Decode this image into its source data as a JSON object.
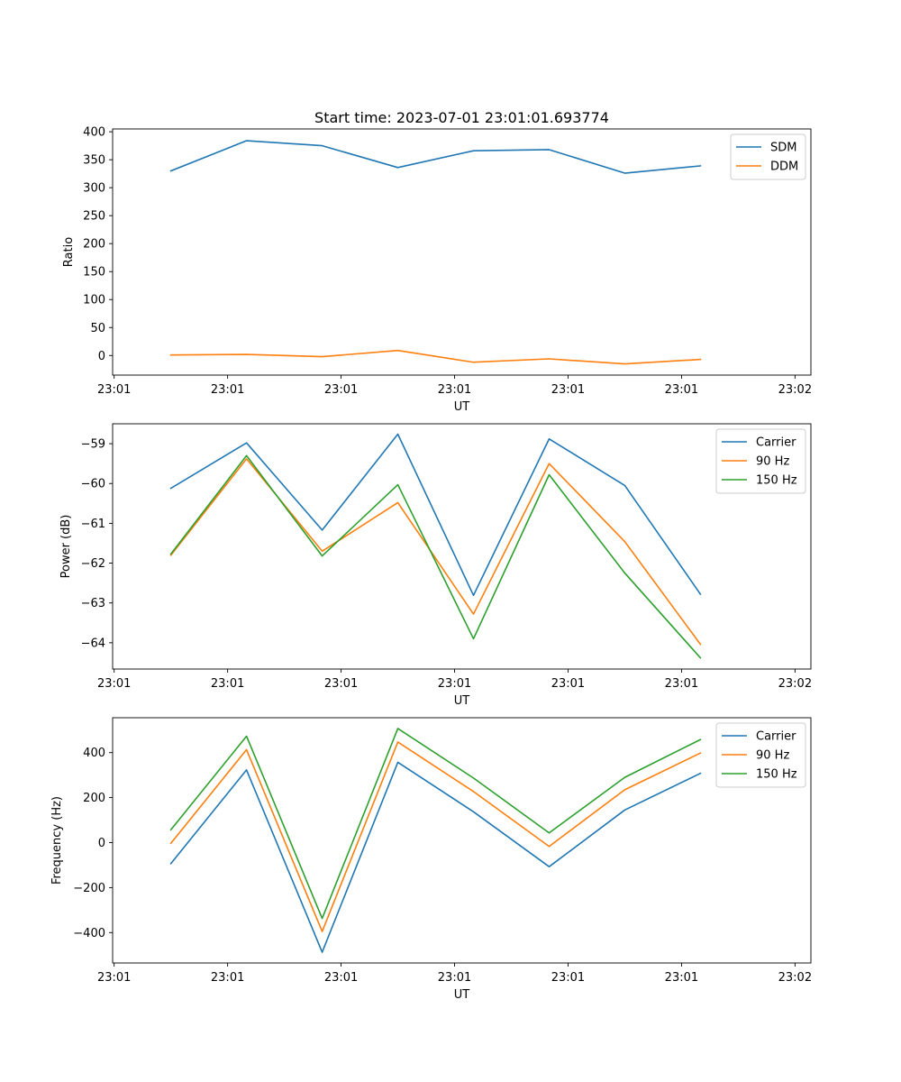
{
  "figure": {
    "title": "Start time: 2023-07-01 23:01:01.693774"
  },
  "chart_data": [
    {
      "type": "line",
      "title": "Start time: 2023-07-01 23:01:01.693774",
      "xlabel": "UT",
      "ylabel": "Ratio",
      "x": [
        0,
        1,
        2,
        3,
        4,
        5,
        6,
        7
      ],
      "xlim": [
        -0.77,
        8.46
      ],
      "xticks": [
        -0.75,
        0.75,
        2.25,
        3.75,
        5.25,
        6.75,
        8.25
      ],
      "xtick_labels": [
        "23:01",
        "23:01",
        "23:01",
        "23:01",
        "23:01",
        "23:01",
        "23:02"
      ],
      "ylim": [
        -35,
        405
      ],
      "yticks": [
        0,
        50,
        100,
        150,
        200,
        250,
        300,
        350,
        400
      ],
      "ytick_labels": [
        "0",
        "50",
        "100",
        "150",
        "200",
        "250",
        "300",
        "350",
        "400"
      ],
      "legend_position": "top-right",
      "series": [
        {
          "name": "SDM",
          "color": "#1f77b4",
          "values": [
            330,
            384,
            375,
            336,
            366,
            368,
            326,
            339
          ]
        },
        {
          "name": "DDM",
          "color": "#ff7f0e",
          "values": [
            1,
            2,
            -2,
            9,
            -12,
            -6,
            -15,
            -7
          ]
        }
      ]
    },
    {
      "type": "line",
      "title": "",
      "xlabel": "UT",
      "ylabel": "Power (dB)",
      "x": [
        0,
        1,
        2,
        3,
        4,
        5,
        6,
        7
      ],
      "xlim": [
        -0.77,
        8.46
      ],
      "xticks": [
        -0.75,
        0.75,
        2.25,
        3.75,
        5.25,
        6.75,
        8.25
      ],
      "xtick_labels": [
        "23:01",
        "23:01",
        "23:01",
        "23:01",
        "23:01",
        "23:01",
        "23:02"
      ],
      "ylim": [
        -64.66,
        -58.5
      ],
      "yticks": [
        -64,
        -63,
        -62,
        -61,
        -60,
        -59
      ],
      "ytick_labels": [
        "−64",
        "−63",
        "−62",
        "−61",
        "−60",
        "−59"
      ],
      "legend_position": "top-right",
      "series": [
        {
          "name": "Carrier",
          "color": "#1f77b4",
          "values": [
            -60.12,
            -58.98,
            -61.17,
            -58.76,
            -62.81,
            -58.88,
            -60.05,
            -62.78
          ]
        },
        {
          "name": "90 Hz",
          "color": "#ff7f0e",
          "values": [
            -61.8,
            -59.38,
            -61.7,
            -60.48,
            -63.28,
            -59.5,
            -61.46,
            -64.04
          ]
        },
        {
          "name": "150 Hz",
          "color": "#2ca02c",
          "values": [
            -61.77,
            -59.3,
            -61.82,
            -60.03,
            -63.9,
            -59.78,
            -62.25,
            -64.38
          ]
        }
      ]
    },
    {
      "type": "line",
      "title": "",
      "xlabel": "UT",
      "ylabel": "Frequency (Hz)",
      "x": [
        0,
        1,
        2,
        3,
        4,
        5,
        6,
        7
      ],
      "xlim": [
        -0.77,
        8.46
      ],
      "xticks": [
        -0.75,
        0.75,
        2.25,
        3.75,
        5.25,
        6.75,
        8.25
      ],
      "xtick_labels": [
        "23:01",
        "23:01",
        "23:01",
        "23:01",
        "23:01",
        "23:01",
        "23:02"
      ],
      "ylim": [
        -535,
        555
      ],
      "yticks": [
        -400,
        -200,
        0,
        200,
        400
      ],
      "ytick_labels": [
        "−400",
        "−200",
        "0",
        "200",
        "400"
      ],
      "legend_position": "top-right",
      "series": [
        {
          "name": "Carrier",
          "color": "#1f77b4",
          "values": [
            -93,
            323,
            -487,
            357,
            137,
            -107,
            145,
            308
          ]
        },
        {
          "name": "90 Hz",
          "color": "#ff7f0e",
          "values": [
            -3,
            413,
            -395,
            447,
            227,
            -17,
            235,
            398
          ]
        },
        {
          "name": "150 Hz",
          "color": "#2ca02c",
          "values": [
            57,
            473,
            -337,
            507,
            287,
            43,
            290,
            458
          ]
        }
      ]
    }
  ]
}
